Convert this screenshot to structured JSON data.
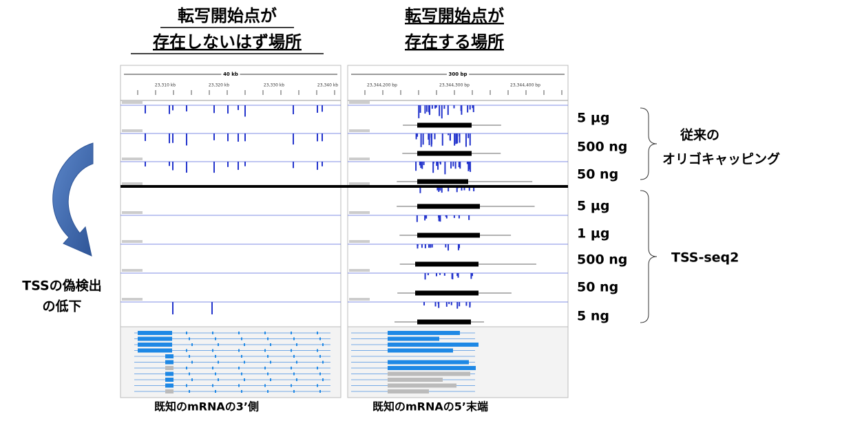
{
  "headings": {
    "left": [
      "転写開始点が",
      "存在しないはず場所"
    ],
    "right": [
      "転写開始点が",
      "存在する場所"
    ]
  },
  "ruler": {
    "left": {
      "span": "40 kb",
      "ticks": [
        "23,310 kb",
        "23,320 kb",
        "23,330 kb",
        "23,340 kb"
      ]
    },
    "right": {
      "span": "300 bp",
      "ticks": [
        "23,344,200 bp",
        "23,344,300 bp",
        "23,344,400 bp"
      ]
    }
  },
  "samples": [
    "5 µg",
    "500 ng",
    "50 ng",
    "5 µg",
    "1 µg",
    "500 ng",
    "50 ng",
    "5 ng"
  ],
  "groups": [
    [
      "従来の",
      "オリゴキャッピング"
    ],
    [
      "TSS-seq2"
    ]
  ],
  "left_note": [
    "TSSの偽検出",
    "の低下"
  ],
  "captions": [
    "既知のmRNAの3’側",
    "既知のmRNAの5’末端"
  ]
}
